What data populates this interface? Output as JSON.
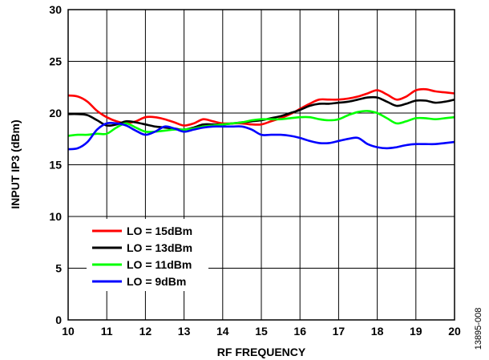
{
  "figure_id": "13895-008",
  "chart_data": {
    "type": "line",
    "title": "",
    "xlabel": "RF FREQUENCY",
    "ylabel": "INPUT IP3 (dBm)",
    "xlim": [
      10,
      20
    ],
    "ylim": [
      0,
      30
    ],
    "x_ticks": [
      "10",
      "11",
      "12",
      "13",
      "14",
      "15",
      "16",
      "17",
      "18",
      "19",
      "20"
    ],
    "y_ticks": [
      "0",
      "5",
      "10",
      "15",
      "20",
      "25",
      "30"
    ],
    "grid": true,
    "legend_position": "lower-left",
    "series": [
      {
        "name": "LO = 15dBm",
        "color": "#ff0000",
        "points": [
          [
            10,
            21.7
          ],
          [
            10.25,
            21.6
          ],
          [
            10.5,
            21.1
          ],
          [
            10.75,
            20.2
          ],
          [
            11,
            19.6
          ],
          [
            11.25,
            19.2
          ],
          [
            11.5,
            19.0
          ],
          [
            11.75,
            19.2
          ],
          [
            12,
            19.6
          ],
          [
            12.25,
            19.6
          ],
          [
            12.5,
            19.4
          ],
          [
            12.75,
            19.1
          ],
          [
            13,
            18.8
          ],
          [
            13.25,
            19.0
          ],
          [
            13.5,
            19.4
          ],
          [
            13.75,
            19.2
          ],
          [
            14,
            19.0
          ],
          [
            14.25,
            19.0
          ],
          [
            14.5,
            19.0
          ],
          [
            14.75,
            18.9
          ],
          [
            15,
            18.9
          ],
          [
            15.25,
            19.2
          ],
          [
            15.5,
            19.5
          ],
          [
            15.75,
            19.9
          ],
          [
            16,
            20.4
          ],
          [
            16.25,
            20.9
          ],
          [
            16.5,
            21.3
          ],
          [
            16.75,
            21.3
          ],
          [
            17,
            21.3
          ],
          [
            17.25,
            21.4
          ],
          [
            17.5,
            21.6
          ],
          [
            17.75,
            21.9
          ],
          [
            18,
            22.2
          ],
          [
            18.25,
            21.8
          ],
          [
            18.5,
            21.3
          ],
          [
            18.75,
            21.6
          ],
          [
            19,
            22.2
          ],
          [
            19.25,
            22.3
          ],
          [
            19.5,
            22.1
          ],
          [
            19.75,
            22.0
          ],
          [
            20,
            21.9
          ]
        ]
      },
      {
        "name": "LO = 13dBm",
        "color": "#000000",
        "points": [
          [
            10,
            19.9
          ],
          [
            10.25,
            19.9
          ],
          [
            10.5,
            19.8
          ],
          [
            10.75,
            19.3
          ],
          [
            11,
            18.8
          ],
          [
            11.25,
            18.9
          ],
          [
            11.5,
            19.2
          ],
          [
            11.75,
            19.1
          ],
          [
            12,
            18.9
          ],
          [
            12.25,
            18.7
          ],
          [
            12.5,
            18.6
          ],
          [
            12.75,
            18.5
          ],
          [
            13,
            18.4
          ],
          [
            13.25,
            18.6
          ],
          [
            13.5,
            18.9
          ],
          [
            13.75,
            18.9
          ],
          [
            14,
            18.9
          ],
          [
            14.25,
            19.0
          ],
          [
            14.5,
            19.1
          ],
          [
            14.75,
            19.2
          ],
          [
            15,
            19.3
          ],
          [
            15.25,
            19.5
          ],
          [
            15.5,
            19.7
          ],
          [
            15.75,
            20.0
          ],
          [
            16,
            20.3
          ],
          [
            16.25,
            20.7
          ],
          [
            16.5,
            20.9
          ],
          [
            16.75,
            20.9
          ],
          [
            17,
            21.0
          ],
          [
            17.25,
            21.1
          ],
          [
            17.5,
            21.3
          ],
          [
            17.75,
            21.5
          ],
          [
            18,
            21.5
          ],
          [
            18.25,
            21.1
          ],
          [
            18.5,
            20.7
          ],
          [
            18.75,
            20.9
          ],
          [
            19,
            21.2
          ],
          [
            19.25,
            21.2
          ],
          [
            19.5,
            21.0
          ],
          [
            19.75,
            21.1
          ],
          [
            20,
            21.3
          ]
        ]
      },
      {
        "name": "LO = 11dBm",
        "color": "#00ff00",
        "points": [
          [
            10,
            17.8
          ],
          [
            10.25,
            17.9
          ],
          [
            10.5,
            17.9
          ],
          [
            10.75,
            18.0
          ],
          [
            11,
            18.0
          ],
          [
            11.25,
            18.6
          ],
          [
            11.5,
            19.0
          ],
          [
            11.75,
            18.6
          ],
          [
            12,
            18.2
          ],
          [
            12.25,
            18.2
          ],
          [
            12.5,
            18.3
          ],
          [
            12.75,
            18.4
          ],
          [
            13,
            18.4
          ],
          [
            13.25,
            18.5
          ],
          [
            13.5,
            18.7
          ],
          [
            13.75,
            18.8
          ],
          [
            14,
            18.9
          ],
          [
            14.25,
            19.0
          ],
          [
            14.5,
            19.1
          ],
          [
            14.75,
            19.3
          ],
          [
            15,
            19.4
          ],
          [
            15.25,
            19.4
          ],
          [
            15.5,
            19.4
          ],
          [
            15.75,
            19.5
          ],
          [
            16,
            19.6
          ],
          [
            16.25,
            19.6
          ],
          [
            16.5,
            19.4
          ],
          [
            16.75,
            19.3
          ],
          [
            17,
            19.4
          ],
          [
            17.25,
            19.8
          ],
          [
            17.5,
            20.1
          ],
          [
            17.75,
            20.2
          ],
          [
            18,
            20.0
          ],
          [
            18.25,
            19.5
          ],
          [
            18.5,
            19.0
          ],
          [
            18.75,
            19.2
          ],
          [
            19,
            19.5
          ],
          [
            19.25,
            19.5
          ],
          [
            19.5,
            19.4
          ],
          [
            19.75,
            19.5
          ],
          [
            20,
            19.6
          ]
        ]
      },
      {
        "name": "LO = 9dBm",
        "color": "#0000ff",
        "points": [
          [
            10,
            16.5
          ],
          [
            10.25,
            16.6
          ],
          [
            10.5,
            17.2
          ],
          [
            10.75,
            18.4
          ],
          [
            11,
            19.0
          ],
          [
            11.25,
            19.0
          ],
          [
            11.5,
            18.8
          ],
          [
            11.75,
            18.3
          ],
          [
            12,
            17.9
          ],
          [
            12.25,
            18.2
          ],
          [
            12.5,
            18.7
          ],
          [
            12.75,
            18.5
          ],
          [
            13,
            18.2
          ],
          [
            13.25,
            18.4
          ],
          [
            13.5,
            18.6
          ],
          [
            13.75,
            18.7
          ],
          [
            14,
            18.7
          ],
          [
            14.25,
            18.7
          ],
          [
            14.5,
            18.7
          ],
          [
            14.75,
            18.4
          ],
          [
            15,
            17.9
          ],
          [
            15.25,
            17.9
          ],
          [
            15.5,
            17.9
          ],
          [
            15.75,
            17.8
          ],
          [
            16,
            17.6
          ],
          [
            16.25,
            17.3
          ],
          [
            16.5,
            17.1
          ],
          [
            16.75,
            17.1
          ],
          [
            17,
            17.3
          ],
          [
            17.25,
            17.5
          ],
          [
            17.5,
            17.6
          ],
          [
            17.75,
            17.0
          ],
          [
            18,
            16.7
          ],
          [
            18.25,
            16.6
          ],
          [
            18.5,
            16.7
          ],
          [
            18.75,
            16.9
          ],
          [
            19,
            17.0
          ],
          [
            19.25,
            17.0
          ],
          [
            19.5,
            17.0
          ],
          [
            19.75,
            17.1
          ],
          [
            20,
            17.2
          ]
        ]
      }
    ]
  }
}
